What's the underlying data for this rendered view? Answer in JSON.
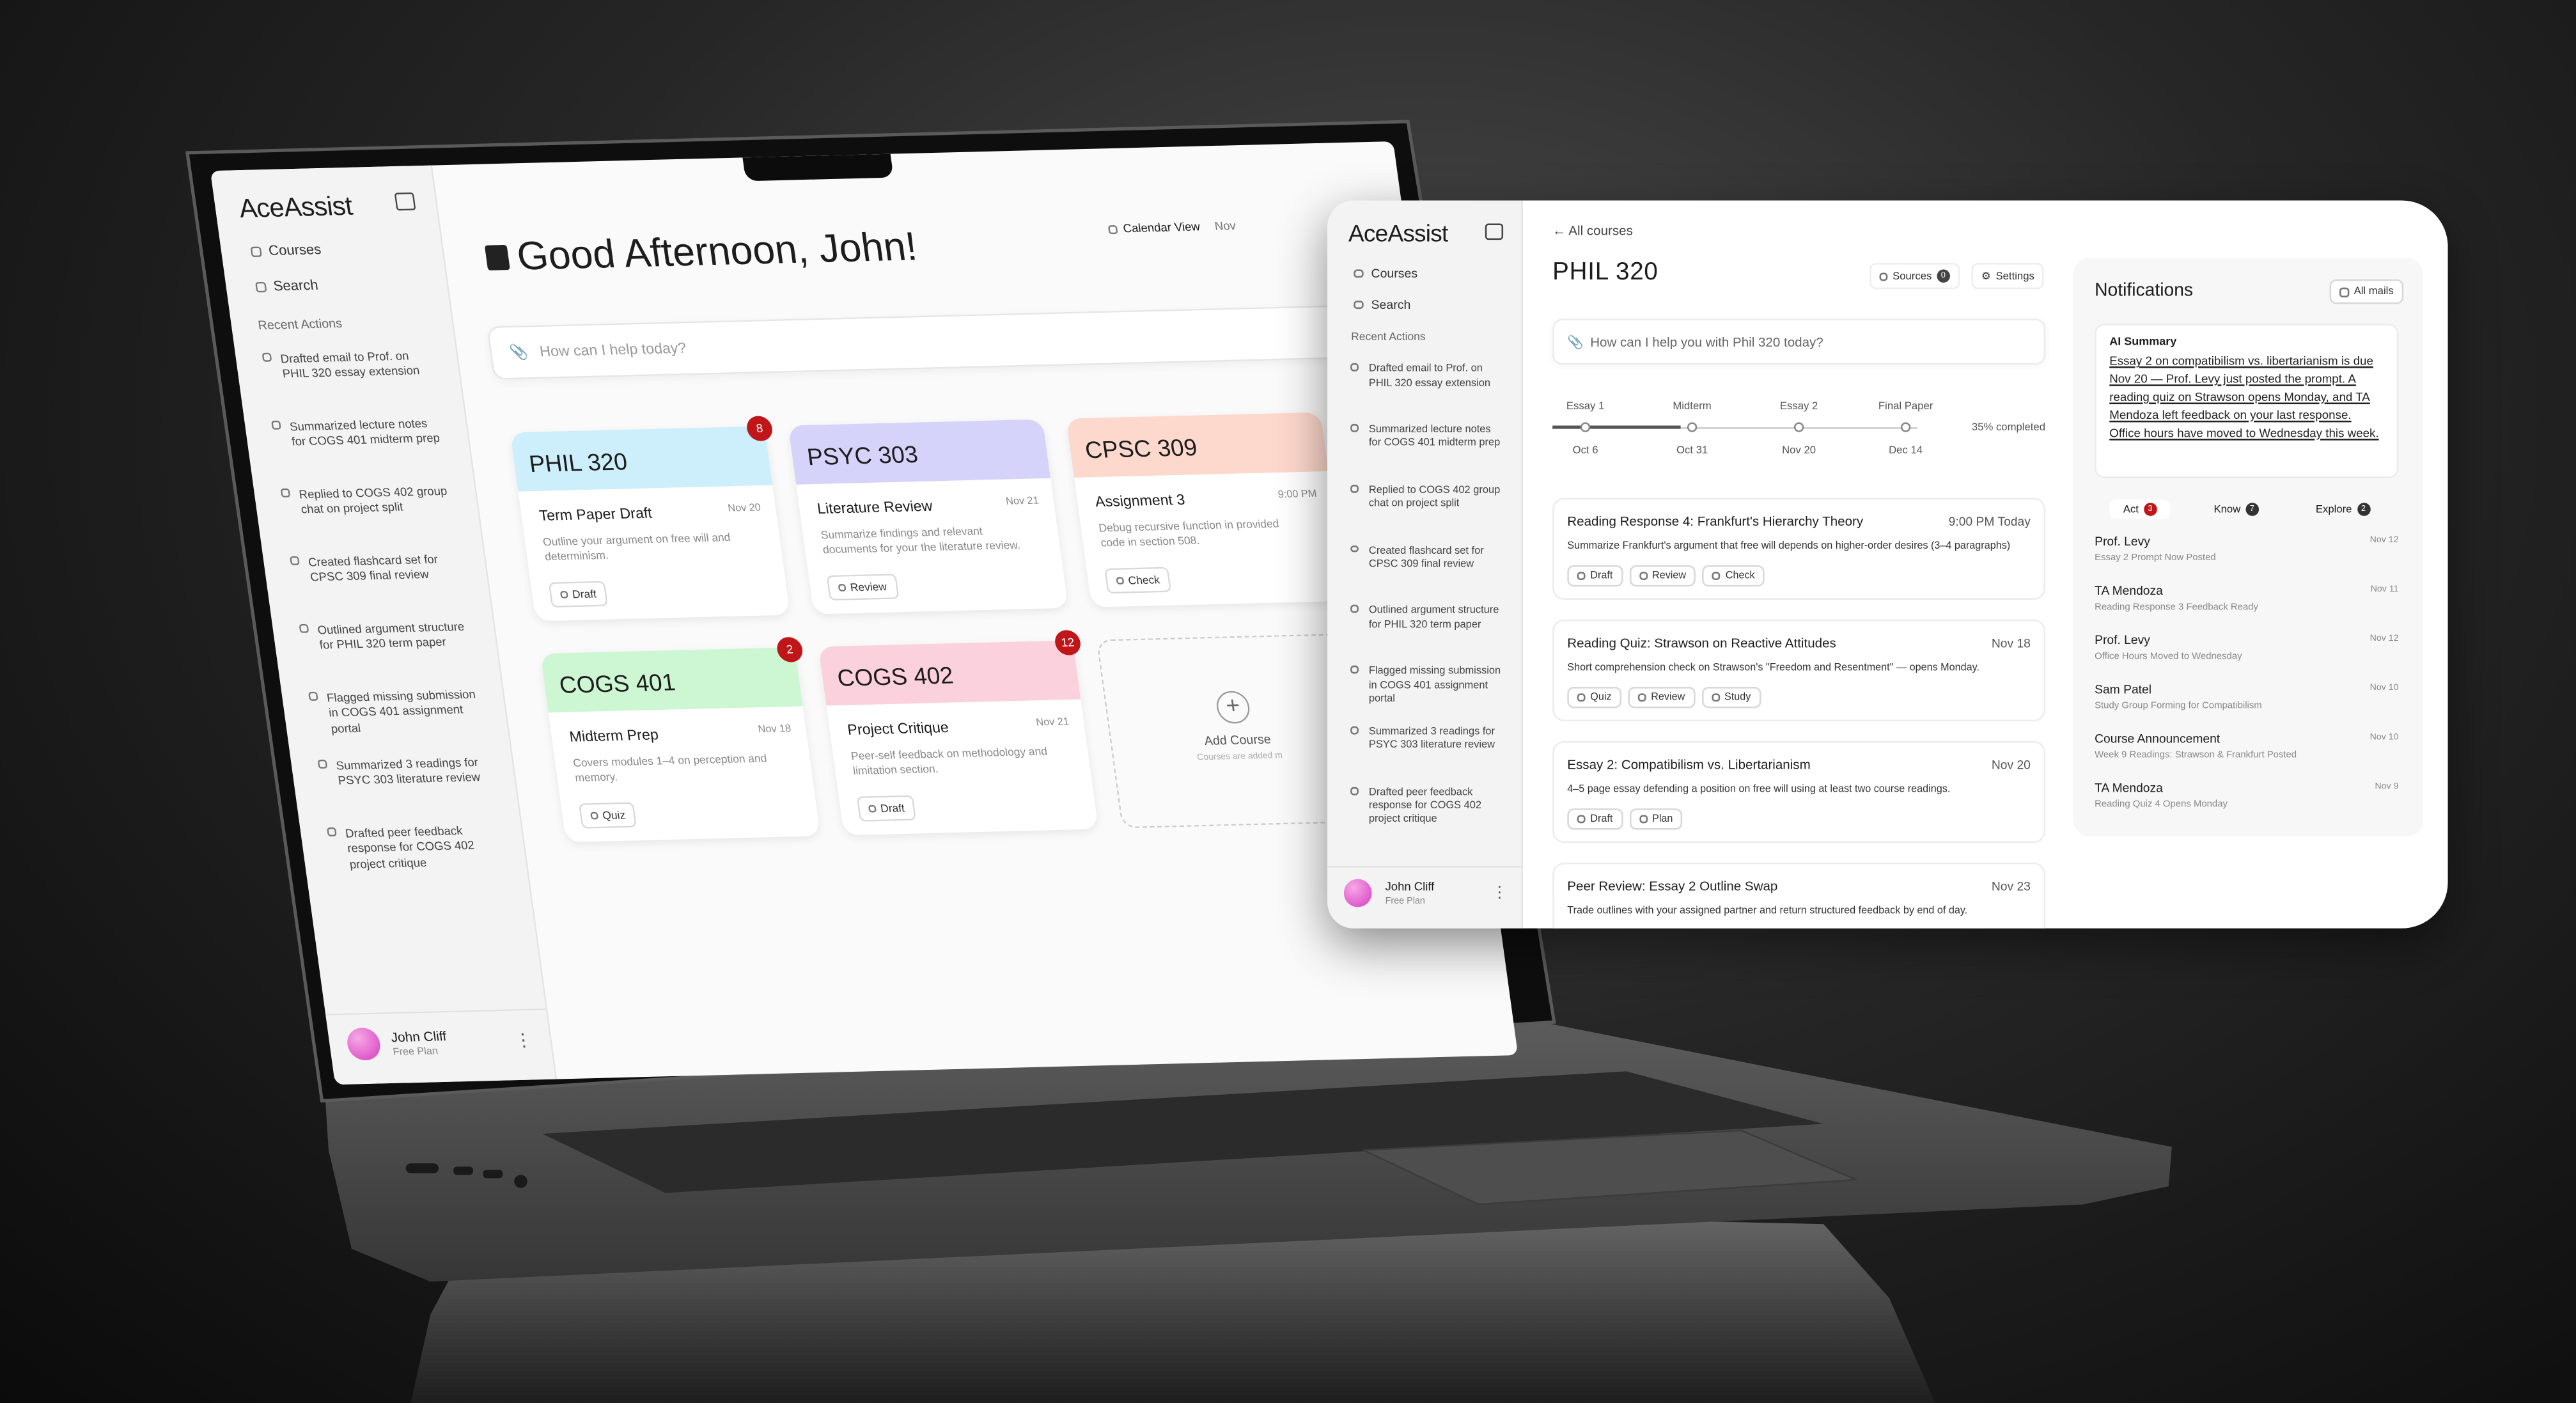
{
  "brand": "AceAssist",
  "sidebar": {
    "nav": [
      "Courses",
      "Search"
    ],
    "recent_title": "Recent Actions",
    "recent_actions": [
      "Drafted email to Prof. on PHIL 320 essay extension",
      "Summarized lecture notes for COGS 401 midterm prep",
      "Replied to COGS 402 group chat on project split",
      "Created flashcard set for CPSC 309 final review",
      "Outlined argument structure for PHIL 320 term paper",
      "Flagged missing submission in COGS 401 assignment portal",
      "Summarized 3 readings for PSYC 303 literature review",
      "Drafted peer feedback response for COGS 402 project critique"
    ],
    "user": {
      "name": "John Cliff",
      "plan": "Free Plan"
    }
  },
  "home": {
    "greeting": "Good Afternoon, John!",
    "calendar_view": "Calendar View",
    "calendar_date": "Nov",
    "prompt": "How can I help today?",
    "courses": [
      {
        "code": "PHIL 320",
        "color": "#cdeefb",
        "badge": 8,
        "task": "Term Paper Draft",
        "date": "Nov 20",
        "desc": "Outline your argument on free will and determinism.",
        "action": "Draft"
      },
      {
        "code": "PSYC 303",
        "color": "#d6d3fb",
        "task": "Literature Review",
        "date": "Nov 21",
        "desc": "Summarize findings and relevant documents for your the literature review.",
        "action": "Review"
      },
      {
        "code": "CPSC 309",
        "color": "#fdd8cc",
        "task": "Assignment 3",
        "date": "9:00 PM",
        "desc": "Debug recursive function in provided code in section 508.",
        "action": "Check"
      },
      {
        "code": "COGS 401",
        "color": "#cdf6d3",
        "badge": 2,
        "task": "Midterm Prep",
        "date": "Nov 18",
        "desc": "Covers modules 1–4 on perception and memory.",
        "action": "Quiz"
      },
      {
        "code": "COGS 402",
        "color": "#fcd1de",
        "badge": 12,
        "task": "Project Critique",
        "date": "Nov 21",
        "desc": "Peer-self feedback on methodology and limitation section.",
        "action": "Draft"
      }
    ],
    "add_course": {
      "label": "Add Course",
      "note": "Courses are added m"
    }
  },
  "course": {
    "back": "All courses",
    "title": "PHIL 320",
    "sources": "Sources",
    "sources_count": 0,
    "settings": "Settings",
    "prompt": "How can I help you with Phil 320 today?",
    "milestones": [
      {
        "label": "Essay 1",
        "date": "Oct 6"
      },
      {
        "label": "Midterm",
        "date": "Oct 31"
      },
      {
        "label": "Essay 2",
        "date": "Nov 20"
      },
      {
        "label": "Final Paper",
        "date": "Dec 14"
      }
    ],
    "progress": {
      "value": 35,
      "label": "35% completed"
    },
    "tasks": [
      {
        "title": "Reading Response 4: Frankfurt's Hierarchy Theory",
        "time": "9:00 PM Today",
        "desc": "Summarize Frankfurt's argument that free will depends on higher-order desires (3–4 paragraphs)",
        "actions": [
          "Draft",
          "Review",
          "Check"
        ]
      },
      {
        "title": "Reading Quiz: Strawson on Reactive Attitudes",
        "time": "Nov 18",
        "desc": "Short comprehension check on Strawson's \"Freedom and Resentment\" — opens Monday.",
        "actions": [
          "Quiz",
          "Review",
          "Study"
        ]
      },
      {
        "title": "Essay 2: Compatibilism vs. Libertarianism",
        "time": "Nov 20",
        "desc": "4–5 page essay defending a position on free will using at least two course readings.",
        "actions": [
          "Draft",
          "Plan"
        ]
      },
      {
        "title": "Peer Review: Essay 2 Outline Swap",
        "time": "Nov 23",
        "desc": "Trade outlines with your assigned partner and return structured feedback by end of day.",
        "actions": []
      }
    ]
  },
  "notifications": {
    "title": "Notifications",
    "all_mails": "All mails",
    "ai_title": "AI Summary",
    "ai_text": "Essay 2 on compatibilism vs. libertarianism is due Nov 20 — Prof. Levy just posted the prompt. A reading quiz on Strawson opens Monday, and TA Mendoza left feedback on your last response. Office hours have moved to Wednesday this week.",
    "tabs": [
      {
        "label": "Act",
        "count": 3
      },
      {
        "label": "Know",
        "count": 7
      },
      {
        "label": "Explore",
        "count": 2
      }
    ],
    "items": [
      {
        "sender": "Prof. Levy",
        "date": "Nov 12",
        "subject": "Essay 2 Prompt Now Posted"
      },
      {
        "sender": "TA Mendoza",
        "date": "Nov 11",
        "subject": "Reading Response 3 Feedback Ready"
      },
      {
        "sender": "Prof. Levy",
        "date": "Nov 12",
        "subject": "Office Hours Moved to Wednesday"
      },
      {
        "sender": "Sam Patel",
        "date": "Nov 10",
        "subject": "Study Group Forming for Compatibilism"
      },
      {
        "sender": "Course Announcement",
        "date": "Nov 10",
        "subject": "Week 9 Readings: Strawson & Frankfurt Posted"
      },
      {
        "sender": "TA Mendoza",
        "date": "Nov 9",
        "subject": "Reading Quiz 4 Opens Monday"
      }
    ]
  }
}
